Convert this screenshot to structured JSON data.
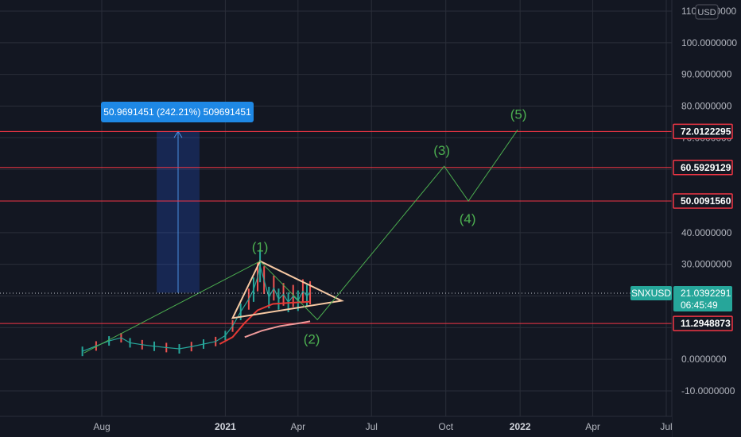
{
  "currency": "USD",
  "chart_data": {
    "type": "line",
    "symbol": "SNXUSD",
    "last_price": "21.0392291",
    "countdown": "06:45:49",
    "ylim": [
      -14,
      113
    ],
    "y_ticks": [
      {
        "v": 110,
        "label": "110.0000000"
      },
      {
        "v": 100,
        "label": "100.0000000"
      },
      {
        "v": 90,
        "label": "90.0000000"
      },
      {
        "v": 80,
        "label": "80.0000000"
      },
      {
        "v": 70,
        "label": "70.0000000"
      },
      {
        "v": 40,
        "label": "40.0000000"
      },
      {
        "v": 30,
        "label": "30.0000000"
      },
      {
        "v": 0,
        "label": "0.0000000"
      },
      {
        "v": -10,
        "label": "-10.0000000"
      }
    ],
    "x_ticks": [
      {
        "date": "2020-08",
        "label": "Aug",
        "bold": false
      },
      {
        "date": "2021-01",
        "label": "2021",
        "bold": true
      },
      {
        "date": "2021-04",
        "label": "Apr",
        "bold": false
      },
      {
        "date": "2021-07",
        "label": "Jul",
        "bold": false
      },
      {
        "date": "2021-10",
        "label": "Oct",
        "bold": false
      },
      {
        "date": "2022-01",
        "label": "2022",
        "bold": true
      },
      {
        "date": "2022-04",
        "label": "Apr",
        "bold": false
      },
      {
        "date": "2022-07",
        "label": "Jul",
        "bold": false
      }
    ],
    "horizontal_levels": [
      {
        "value": 72.0122295,
        "label": "72.0122295"
      },
      {
        "value": 60.5929129,
        "label": "60.5929129"
      },
      {
        "value": 50.009156,
        "label": "50.0091560"
      },
      {
        "value": 11.2948873,
        "label": "11.2948873"
      }
    ],
    "measure": {
      "label": "50.9691451 (242.21%) 509691451",
      "from": {
        "date": "2020-10-08",
        "value": 21.04
      },
      "to": {
        "date": "2020-11-30",
        "value": 72.01
      }
    },
    "wave_path": [
      {
        "date": "2020-07-10",
        "value": 2
      },
      {
        "date": "2021-02-13",
        "value": 31
      },
      {
        "date": "2021-04-25",
        "value": 12.5
      },
      {
        "date": "2021-09-29",
        "value": 61
      },
      {
        "date": "2021-10-29",
        "value": 50
      },
      {
        "date": "2021-12-29",
        "value": 72.5
      }
    ],
    "wave_labels": [
      {
        "label": "(1)",
        "date": "2021-02-13",
        "value": 34
      },
      {
        "label": "(2)",
        "date": "2021-04-18",
        "value": 5
      },
      {
        "label": "(3)",
        "date": "2021-09-26",
        "value": 64.5
      },
      {
        "label": "(4)",
        "date": "2021-10-28",
        "value": 43
      },
      {
        "label": "(5)",
        "date": "2021-12-30",
        "value": 76
      }
    ],
    "triangle": [
      {
        "date": "2021-02-13",
        "value": 31
      },
      {
        "date": "2021-05-25",
        "value": 18.5
      },
      {
        "date": "2021-01-10",
        "value": 13
      }
    ],
    "price_series": [
      {
        "date": "2020-07-08",
        "value": 2.5
      },
      {
        "date": "2020-07-25",
        "value": 4.2
      },
      {
        "date": "2020-08-10",
        "value": 5.8
      },
      {
        "date": "2020-08-25",
        "value": 6.8
      },
      {
        "date": "2020-09-05",
        "value": 5.2
      },
      {
        "date": "2020-09-20",
        "value": 4.6
      },
      {
        "date": "2020-10-05",
        "value": 4.1
      },
      {
        "date": "2020-10-20",
        "value": 3.7
      },
      {
        "date": "2020-11-05",
        "value": 3.3
      },
      {
        "date": "2020-11-20",
        "value": 4.0
      },
      {
        "date": "2020-12-05",
        "value": 4.8
      },
      {
        "date": "2020-12-20",
        "value": 5.6
      },
      {
        "date": "2021-01-01",
        "value": 7.5
      },
      {
        "date": "2021-01-10",
        "value": 10.5
      },
      {
        "date": "2021-01-20",
        "value": 15.0
      },
      {
        "date": "2021-01-30",
        "value": 19.0
      },
      {
        "date": "2021-02-05",
        "value": 22.0
      },
      {
        "date": "2021-02-10",
        "value": 26.0
      },
      {
        "date": "2021-02-13",
        "value": 29.5
      },
      {
        "date": "2021-02-18",
        "value": 25.0
      },
      {
        "date": "2021-02-24",
        "value": 19.5
      },
      {
        "date": "2021-03-02",
        "value": 22.5
      },
      {
        "date": "2021-03-08",
        "value": 19.0
      },
      {
        "date": "2021-03-14",
        "value": 20.5
      },
      {
        "date": "2021-03-20",
        "value": 18.0
      },
      {
        "date": "2021-03-26",
        "value": 20.0
      },
      {
        "date": "2021-04-01",
        "value": 18.5
      },
      {
        "date": "2021-04-07",
        "value": 21.5
      },
      {
        "date": "2021-04-12",
        "value": 20.0
      },
      {
        "date": "2021-04-16",
        "value": 21.0
      }
    ],
    "ma_red": [
      {
        "date": "2020-12-25",
        "value": 4.8
      },
      {
        "date": "2021-01-10",
        "value": 7.0
      },
      {
        "date": "2021-01-25",
        "value": 11.5
      },
      {
        "date": "2021-02-10",
        "value": 15.5
      },
      {
        "date": "2021-03-01",
        "value": 17.5
      },
      {
        "date": "2021-03-20",
        "value": 17.8
      },
      {
        "date": "2021-04-16",
        "value": 18.2
      }
    ],
    "ma_salmon": [
      {
        "date": "2021-01-25",
        "value": 7.0
      },
      {
        "date": "2021-02-15",
        "value": 9.0
      },
      {
        "date": "2021-03-10",
        "value": 10.5
      },
      {
        "date": "2021-04-05",
        "value": 11.5
      },
      {
        "date": "2021-04-16",
        "value": 12.0
      }
    ],
    "colors": {
      "background": "#131722",
      "grid": "#2a2e39",
      "level": "#f23645",
      "wave": "#4caf50",
      "measure": "#2962ff",
      "triangle": "#f7c9a3",
      "price": "#26a69a",
      "ma_red": "#e53935",
      "ma_salmon": "#ef9a9a",
      "symbol_tag": "#26a69a"
    }
  }
}
